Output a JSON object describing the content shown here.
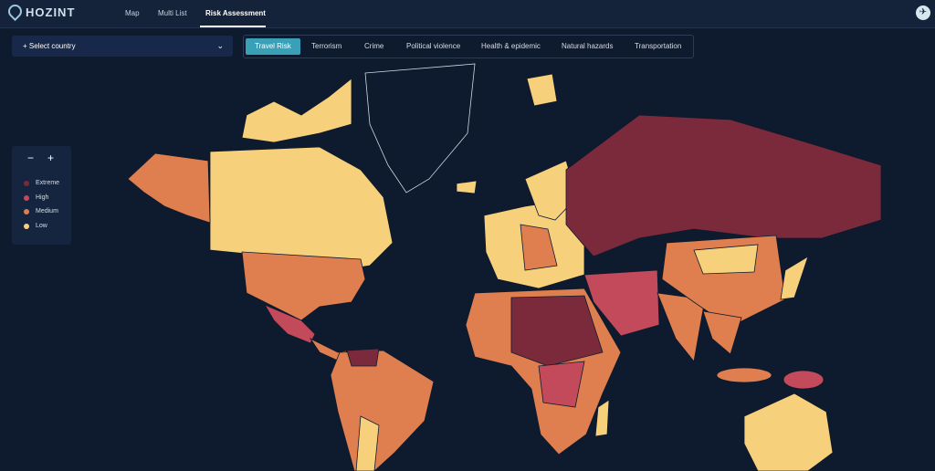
{
  "header": {
    "logo": "HOZINT",
    "nav": [
      "Map",
      "Multi List",
      "Risk Assessment"
    ],
    "active_nav": 2
  },
  "toolbar": {
    "select_placeholder": "+ Select country",
    "tabs": [
      "Travel Risk",
      "Terrorism",
      "Crime",
      "Political violence",
      "Health & epidemic",
      "Natural hazards",
      "Transportation"
    ],
    "active_tab": 0
  },
  "legend": {
    "zoom_out": "−",
    "zoom_in": "+",
    "items": [
      {
        "label": "Extreme",
        "color": "#7b2a3b"
      },
      {
        "label": "High",
        "color": "#c24a5b"
      },
      {
        "label": "Medium",
        "color": "#df7f4f"
      },
      {
        "label": "Low",
        "color": "#f7d07c"
      }
    ]
  }
}
